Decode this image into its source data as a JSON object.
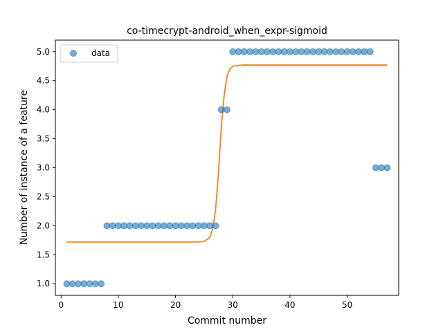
{
  "chart_data": {
    "type": "scatter",
    "title": "co-timecrypt-android_when_expr-sigmoid",
    "xlabel": "Commit number",
    "ylabel": "Number of instance of a feature",
    "xlim": [
      -1.0,
      59.0
    ],
    "ylim": [
      0.8,
      5.2
    ],
    "xticks": [
      0,
      10,
      20,
      30,
      40,
      50
    ],
    "yticks": [
      1.0,
      1.5,
      2.0,
      2.5,
      3.0,
      3.5,
      4.0,
      4.5,
      5.0
    ],
    "xtick_labels": [
      "0",
      "10",
      "20",
      "30",
      "40",
      "50"
    ],
    "ytick_labels": [
      "1.0",
      "1.5",
      "2.0",
      "2.5",
      "3.0",
      "3.5",
      "4.0",
      "4.5",
      "5.0"
    ],
    "grid": false,
    "legend": {
      "placement": "top-left",
      "entries": [
        "data"
      ]
    },
    "series": [
      {
        "name": "data",
        "kind": "scatter",
        "color": "#1f77b4",
        "x": [
          1,
          2,
          3,
          4,
          5,
          6,
          7,
          8,
          9,
          10,
          11,
          12,
          13,
          14,
          15,
          16,
          17,
          18,
          19,
          20,
          21,
          22,
          23,
          24,
          25,
          26,
          27,
          28,
          29,
          30,
          31,
          32,
          33,
          34,
          35,
          36,
          37,
          38,
          39,
          40,
          41,
          42,
          43,
          44,
          45,
          46,
          47,
          48,
          49,
          50,
          51,
          52,
          53,
          54,
          55,
          56,
          57
        ],
        "y": [
          1,
          1,
          1,
          1,
          1,
          1,
          1,
          2,
          2,
          2,
          2,
          2,
          2,
          2,
          2,
          2,
          2,
          2,
          2,
          2,
          2,
          2,
          2,
          2,
          2,
          2,
          2,
          4,
          4,
          5,
          5,
          5,
          5,
          5,
          5,
          5,
          5,
          5,
          5,
          5,
          5,
          5,
          5,
          5,
          5,
          5,
          5,
          5,
          5,
          5,
          5,
          5,
          5,
          5,
          3,
          3,
          3
        ]
      },
      {
        "kind": "line",
        "color": "#ff7f0e",
        "x": [
          1,
          5,
          10,
          15,
          20,
          24,
          25,
          26,
          26.5,
          27,
          27.5,
          28,
          28.5,
          29,
          29.5,
          30,
          31,
          32,
          35,
          40,
          45,
          50,
          55,
          57
        ],
        "y": [
          1.72,
          1.72,
          1.72,
          1.72,
          1.72,
          1.72,
          1.73,
          1.8,
          1.95,
          2.28,
          2.9,
          3.7,
          4.25,
          4.58,
          4.7,
          4.75,
          4.765,
          4.77,
          4.77,
          4.77,
          4.77,
          4.77,
          4.77,
          4.77
        ]
      }
    ]
  }
}
